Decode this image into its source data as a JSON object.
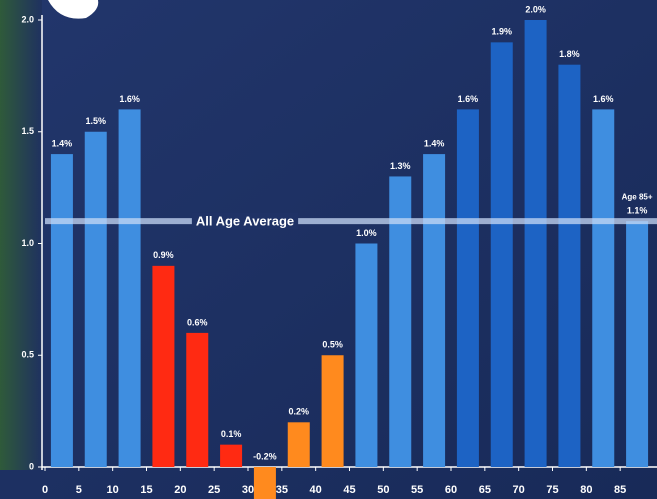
{
  "chart_data": {
    "type": "bar",
    "x": [
      0,
      5,
      10,
      15,
      20,
      25,
      30,
      35,
      40,
      45,
      50,
      55,
      60,
      65,
      70,
      75,
      80,
      85
    ],
    "values": [
      1.4,
      1.5,
      1.6,
      0.9,
      0.6,
      0.1,
      -0.2,
      0.2,
      0.5,
      1.0,
      1.3,
      1.4,
      1.6,
      1.9,
      2.0,
      1.8,
      1.6,
      1.1
    ],
    "value_labels": [
      "1.4%",
      "1.5%",
      "1.6%",
      "0.9%",
      "0.6%",
      "0.1%",
      "-0.2%",
      "0.2%",
      "0.5%",
      "1.0%",
      "1.3%",
      "1.4%",
      "1.6%",
      "1.9%",
      "2.0%",
      "1.8%",
      "1.6%",
      "1.1%"
    ],
    "colors": [
      "#3f8ee0",
      "#3f8ee0",
      "#3f8ee0",
      "#ff2a12",
      "#ff2a12",
      "#ff2a12",
      "#ff8a1e",
      "#ff8a1e",
      "#ff8a1e",
      "#3f8ee0",
      "#3f8ee0",
      "#3f8ee0",
      "#1d63c4",
      "#1d63c4",
      "#1d63c4",
      "#1d63c4",
      "#3f8ee0",
      "#3f8ee0"
    ],
    "xlim": [
      0,
      90
    ],
    "xticks": [
      0,
      5,
      10,
      15,
      20,
      25,
      30,
      35,
      40,
      45,
      50,
      55,
      60,
      65,
      70,
      75,
      80,
      85
    ],
    "ylim": [
      0,
      2
    ],
    "yticks": [
      0,
      0.5,
      {
        "value": 1,
        "label": "1.0"
      },
      1.5,
      {
        "value": 2,
        "label": "2.0"
      }
    ],
    "average_line": {
      "label": "All Age Average",
      "value": 1.1
    },
    "last_bar_note": "Age 85+"
  }
}
